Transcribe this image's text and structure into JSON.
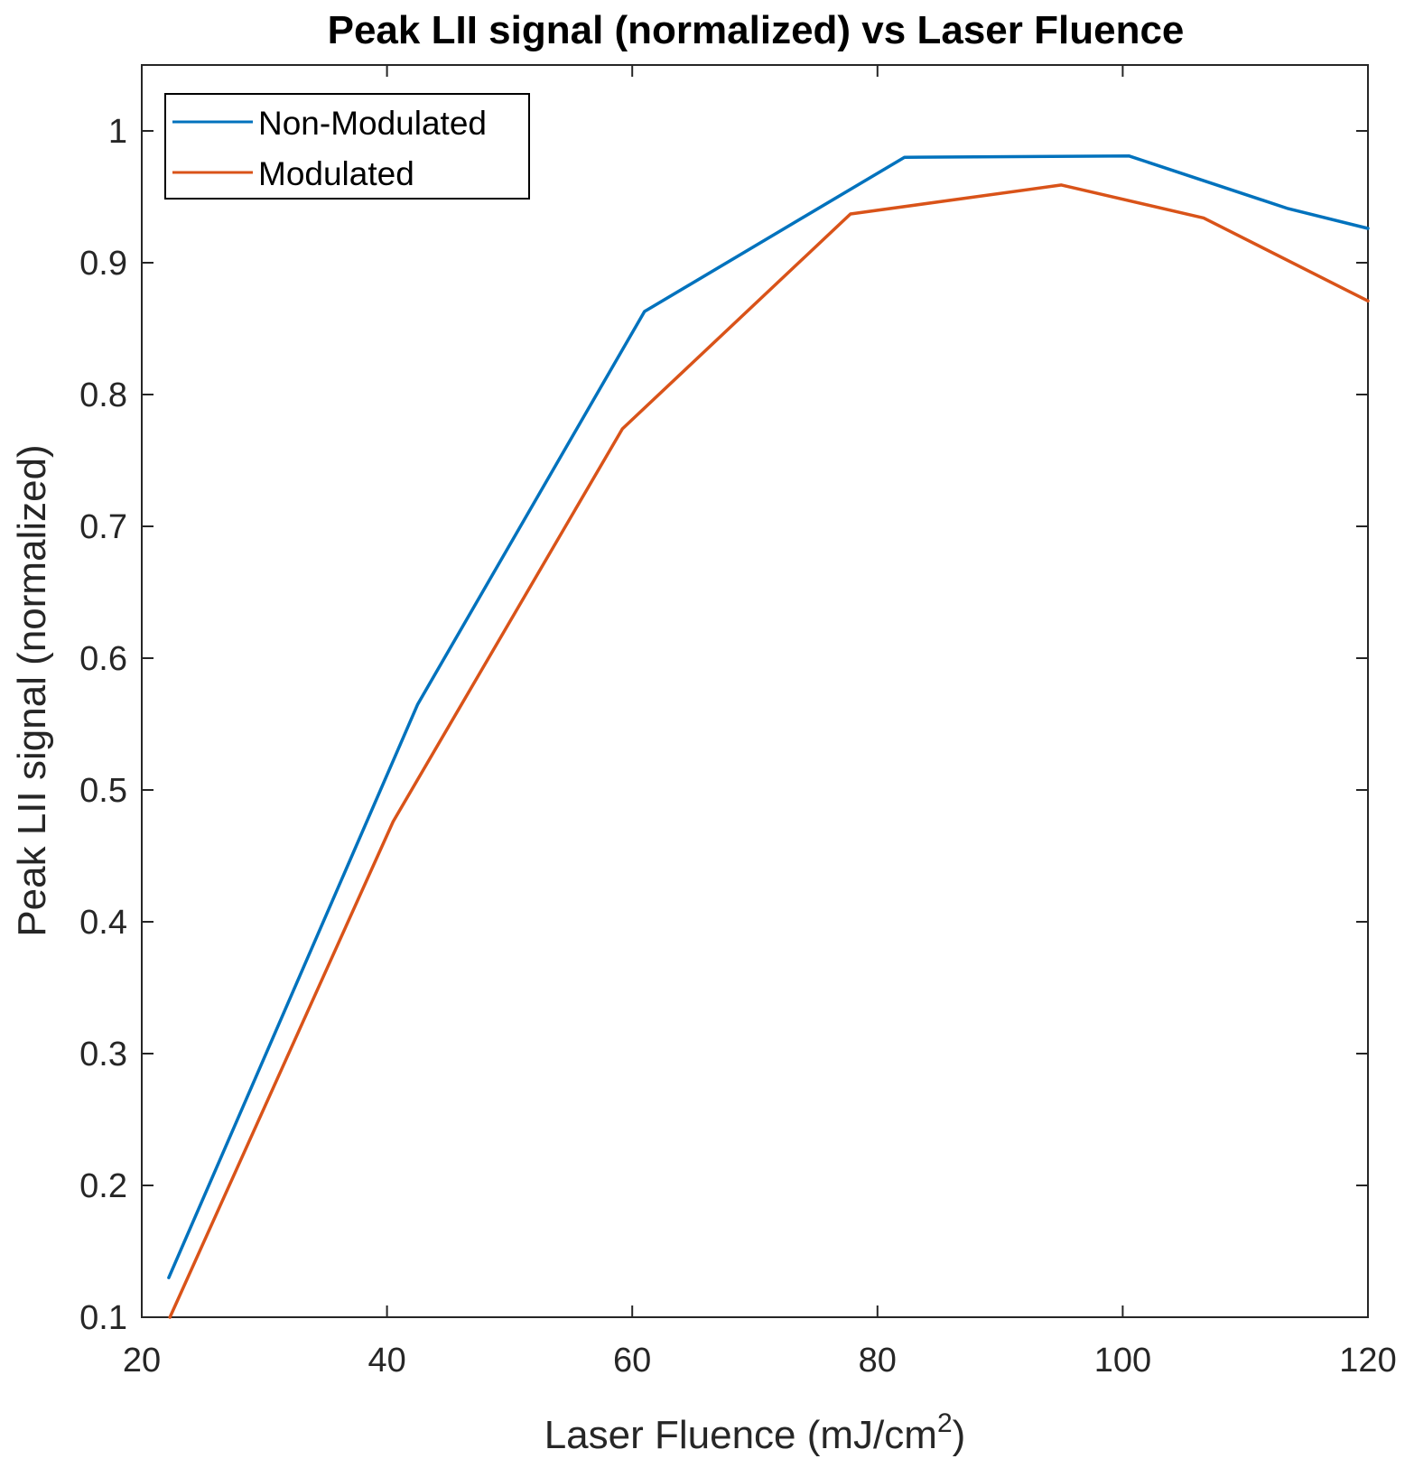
{
  "chart_data": {
    "type": "line",
    "title": "Peak LII signal (normalized) vs Laser Fluence",
    "xlabel_main": "Laser Fluence (mJ/cm",
    "xlabel_sup": "2",
    "xlabel_tail": ")",
    "ylabel": "Peak LII signal (normalized)",
    "xlim": [
      20,
      120
    ],
    "ylim": [
      0.1,
      1.05
    ],
    "xticks": [
      20,
      40,
      60,
      80,
      100,
      120
    ],
    "xtick_labels": [
      "20",
      "40",
      "60",
      "80",
      "100",
      "120"
    ],
    "yticks": [
      0.1,
      0.2,
      0.3,
      0.4,
      0.5,
      0.6,
      0.7,
      0.8,
      0.9,
      1.0
    ],
    "ytick_labels": [
      "0.1",
      "0.2",
      "0.3",
      "0.4",
      "0.5",
      "0.6",
      "0.7",
      "0.8",
      "0.9",
      "1"
    ],
    "grid": false,
    "legend_position": "top-left",
    "series": [
      {
        "name": "Non-Modulated",
        "color": "#0072BD",
        "x": [
          22.2,
          42.5,
          61.0,
          82.2,
          100.5,
          113.5,
          120.0
        ],
        "y": [
          0.13,
          0.565,
          0.863,
          0.98,
          0.981,
          0.941,
          0.926
        ]
      },
      {
        "name": "Modulated",
        "color": "#D95319",
        "x": [
          22.3,
          40.5,
          59.2,
          77.8,
          95.0,
          106.6,
          118.5,
          120.0
        ],
        "y": [
          0.1,
          0.476,
          0.774,
          0.937,
          0.959,
          0.934,
          0.878,
          0.871
        ]
      }
    ]
  }
}
